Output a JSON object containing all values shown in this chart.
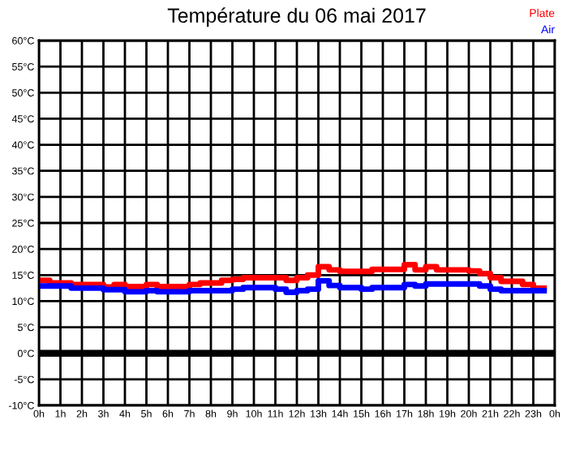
{
  "chart_data": {
    "type": "step",
    "title": "Température du 06 mai 2017",
    "x": [
      "2017-05-06T00:00",
      "2017-05-06T00:30",
      "2017-05-06T01:00",
      "2017-05-06T01:30",
      "2017-05-06T02:00",
      "2017-05-06T02:30",
      "2017-05-06T03:00",
      "2017-05-06T03:30",
      "2017-05-06T04:00",
      "2017-05-06T04:30",
      "2017-05-06T05:00",
      "2017-05-06T05:30",
      "2017-05-06T06:00",
      "2017-05-06T06:30",
      "2017-05-06T07:00",
      "2017-05-06T07:30",
      "2017-05-06T08:00",
      "2017-05-06T08:30",
      "2017-05-06T09:00",
      "2017-05-06T09:30",
      "2017-05-06T10:00",
      "2017-05-06T10:30",
      "2017-05-06T11:00",
      "2017-05-06T11:30",
      "2017-05-06T12:00",
      "2017-05-06T12:30",
      "2017-05-06T13:00",
      "2017-05-06T13:30",
      "2017-05-06T14:00",
      "2017-05-06T14:30",
      "2017-05-06T15:00",
      "2017-05-06T15:30",
      "2017-05-06T16:00",
      "2017-05-06T16:30",
      "2017-05-06T17:00",
      "2017-05-06T17:30",
      "2017-05-06T18:00",
      "2017-05-06T18:30",
      "2017-05-06T19:00",
      "2017-05-06T19:30",
      "2017-05-06T20:00",
      "2017-05-06T20:30",
      "2017-05-06T21:00",
      "2017-05-06T21:30",
      "2017-05-06T22:00",
      "2017-05-06T22:30",
      "2017-05-06T23:00",
      "2017-05-06T23:30"
    ],
    "series": [
      {
        "name": "Plate",
        "color": "#ff0000",
        "values": [
          14,
          13.5,
          13.5,
          13.2,
          13.2,
          13.2,
          12.7,
          13.2,
          12.8,
          12.8,
          13.2,
          12.8,
          12.8,
          12.8,
          13.2,
          13.5,
          13.5,
          14,
          14.2,
          14.5,
          14.5,
          14.5,
          14.5,
          14,
          14.5,
          15,
          16.6,
          16,
          15.7,
          15.7,
          15.7,
          16.1,
          16.1,
          16.1,
          17,
          16,
          16.6,
          16,
          16,
          16,
          15.8,
          15.3,
          14.5,
          13.8,
          13.8,
          13.2,
          12.5,
          12.5
        ]
      },
      {
        "name": "Air",
        "color": "#0000ff",
        "values": [
          12.9,
          12.9,
          12.9,
          12.5,
          12.5,
          12.5,
          12.2,
          12.2,
          11.8,
          11.8,
          12,
          11.8,
          11.8,
          11.8,
          12,
          12,
          12,
          12,
          12.3,
          12.6,
          12.6,
          12.6,
          12.3,
          11.7,
          12,
          12.3,
          13.9,
          13,
          12.6,
          12.6,
          12.3,
          12.6,
          12.6,
          12.6,
          13.2,
          12.9,
          13.3,
          13.3,
          13.3,
          13.3,
          13.3,
          12.9,
          12.3,
          12,
          12,
          12,
          12,
          12
        ]
      }
    ],
    "xlim": [
      "2017-05-06T00:00",
      "2017-05-07T00:00"
    ],
    "xticks": [
      {
        "value": "2017-05-06T00:00",
        "label": "0h"
      },
      {
        "value": "2017-05-06T01:00",
        "label": "1h"
      },
      {
        "value": "2017-05-06T02:00",
        "label": "2h"
      },
      {
        "value": "2017-05-06T03:00",
        "label": "3h"
      },
      {
        "value": "2017-05-06T04:00",
        "label": "4h"
      },
      {
        "value": "2017-05-06T05:00",
        "label": "5h"
      },
      {
        "value": "2017-05-06T06:00",
        "label": "6h"
      },
      {
        "value": "2017-05-06T07:00",
        "label": "7h"
      },
      {
        "value": "2017-05-06T08:00",
        "label": "8h"
      },
      {
        "value": "2017-05-06T09:00",
        "label": "9h"
      },
      {
        "value": "2017-05-06T10:00",
        "label": "10h"
      },
      {
        "value": "2017-05-06T11:00",
        "label": "11h"
      },
      {
        "value": "2017-05-06T12:00",
        "label": "12h"
      },
      {
        "value": "2017-05-06T13:00",
        "label": "13h"
      },
      {
        "value": "2017-05-06T14:00",
        "label": "14h"
      },
      {
        "value": "2017-05-06T15:00",
        "label": "15h"
      },
      {
        "value": "2017-05-06T16:00",
        "label": "16h"
      },
      {
        "value": "2017-05-06T17:00",
        "label": "17h"
      },
      {
        "value": "2017-05-06T18:00",
        "label": "18h"
      },
      {
        "value": "2017-05-06T19:00",
        "label": "19h"
      },
      {
        "value": "2017-05-06T20:00",
        "label": "20h"
      },
      {
        "value": "2017-05-06T21:00",
        "label": "21h"
      },
      {
        "value": "2017-05-06T22:00",
        "label": "22h"
      },
      {
        "value": "2017-05-06T23:00",
        "label": "23h"
      },
      {
        "value": "2017-05-07T00:00",
        "label": "0h"
      }
    ],
    "ylim": [
      -10,
      60
    ],
    "yticks": [
      {
        "value": -10,
        "label": "-10°C"
      },
      {
        "value": -5,
        "label": "-5°C"
      },
      {
        "value": 0,
        "label": "0°C"
      },
      {
        "value": 5,
        "label": "5°C"
      },
      {
        "value": 10,
        "label": "10°C"
      },
      {
        "value": 15,
        "label": "15°C"
      },
      {
        "value": 20,
        "label": "20°C"
      },
      {
        "value": 25,
        "label": "25°C"
      },
      {
        "value": 30,
        "label": "30°C"
      },
      {
        "value": 35,
        "label": "35°C"
      },
      {
        "value": 40,
        "label": "40°C"
      },
      {
        "value": 45,
        "label": "45°C"
      },
      {
        "value": 50,
        "label": "50°C"
      },
      {
        "value": 55,
        "label": "55°C"
      },
      {
        "value": 60,
        "label": "60°C"
      }
    ],
    "ref_lines": [
      {
        "axis": "y",
        "value": 0,
        "color": "#000000"
      }
    ],
    "grid": true,
    "legend": "top right"
  }
}
